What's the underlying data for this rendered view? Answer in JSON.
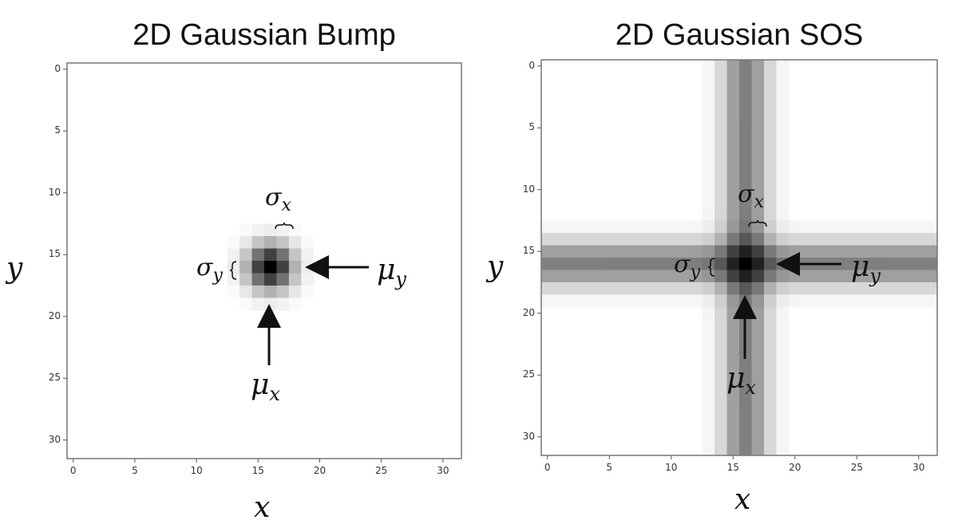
{
  "chart_data": [
    {
      "type": "heatmap",
      "title": "2D Gaussian Bump",
      "xlabel": "x",
      "ylabel": "y",
      "xlim": [
        -0.5,
        31.5
      ],
      "ylim": [
        31.5,
        -0.5
      ],
      "xticks": [
        0,
        5,
        10,
        15,
        20,
        25,
        30
      ],
      "yticks": [
        0,
        5,
        10,
        15,
        20,
        25,
        30
      ],
      "grid": false,
      "colormap": "gray_r",
      "params": {
        "mu_x": 16,
        "mu_y": 16,
        "sigma_x": 1,
        "sigma_y": 1
      },
      "annotations": [
        {
          "text": "σ",
          "sub": "x"
        },
        {
          "text": "σ",
          "sub": "y"
        },
        {
          "text": "μ",
          "sub": "y"
        },
        {
          "text": "μ",
          "sub": "x"
        }
      ]
    },
    {
      "type": "heatmap",
      "title": "2D Gaussian SOS",
      "xlabel": "x",
      "ylabel": "y",
      "xlim": [
        -0.5,
        31.5
      ],
      "ylim": [
        31.5,
        -0.5
      ],
      "xticks": [
        0,
        5,
        10,
        15,
        20,
        25,
        30
      ],
      "yticks": [
        0,
        5,
        10,
        15,
        20,
        25,
        30
      ],
      "grid": false,
      "colormap": "gray_r",
      "params": {
        "mu_x": 16,
        "mu_y": 16,
        "sigma_x": 1,
        "sigma_y": 1
      },
      "annotations": [
        {
          "text": "σ",
          "sub": "x"
        },
        {
          "text": "σ",
          "sub": "y"
        },
        {
          "text": "μ",
          "sub": "y"
        },
        {
          "text": "μ",
          "sub": "x"
        }
      ]
    }
  ]
}
